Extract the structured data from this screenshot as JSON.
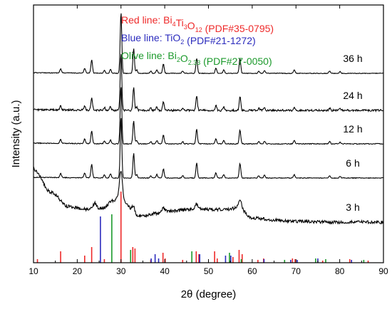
{
  "chart_data": {
    "type": "line",
    "xlabel": "2θ (degree)",
    "ylabel": "Intensity (a.u.)",
    "xlim": [
      10,
      90
    ],
    "x_ticks": [
      "10",
      "20",
      "30",
      "40",
      "50",
      "60",
      "70",
      "80",
      "90"
    ],
    "y_ticks_shown": false,
    "grid": false,
    "legend": {
      "placement": "top-center",
      "entries": [
        {
          "prefix": "Red line: ",
          "formula": [
            [
              "Bi",
              ""
            ],
            [
              "4",
              "sub"
            ],
            [
              "Ti",
              ""
            ],
            [
              "3",
              "sub"
            ],
            [
              "O",
              ""
            ],
            [
              "12",
              "sub"
            ]
          ],
          "ref": " (PDF#35-0795)",
          "color": "#ee2a2a"
        },
        {
          "prefix": "Blue line: ",
          "formula": [
            [
              "TiO",
              ""
            ],
            [
              "2",
              "sub"
            ]
          ],
          "ref": " (PDF#21-1272)",
          "color": "#2b2bbd"
        },
        {
          "prefix": "Olive line: ",
          "formula": [
            [
              "Bi",
              ""
            ],
            [
              "2",
              "sub"
            ],
            [
              "O",
              ""
            ],
            [
              "2.33",
              "sub"
            ]
          ],
          "ref": " (PDF#27-0050)",
          "color": "#1c9a2c"
        }
      ]
    },
    "series": [
      {
        "name": "36 h",
        "color": "#000000"
      },
      {
        "name": "24 h",
        "color": "#000000"
      },
      {
        "name": "12 h",
        "color": "#000000"
      },
      {
        "name": "6 h",
        "color": "#000000"
      },
      {
        "name": "3 h",
        "color": "#000000"
      }
    ],
    "crystalline_peaks": [
      {
        "x": 16.2,
        "h": 0.7
      },
      {
        "x": 21.7,
        "h": 0.8
      },
      {
        "x": 23.3,
        "h": 2.3
      },
      {
        "x": 26.2,
        "h": 0.5
      },
      {
        "x": 27.6,
        "h": 0.7
      },
      {
        "x": 30.0,
        "h": 10.5
      },
      {
        "x": 32.9,
        "h": 4.2
      },
      {
        "x": 33.6,
        "h": 0.6
      },
      {
        "x": 36.8,
        "h": 0.4
      },
      {
        "x": 38.2,
        "h": 0.6
      },
      {
        "x": 39.7,
        "h": 1.6
      },
      {
        "x": 44.1,
        "h": 0.4
      },
      {
        "x": 47.3,
        "h": 2.6
      },
      {
        "x": 51.7,
        "h": 0.9
      },
      {
        "x": 53.5,
        "h": 0.6
      },
      {
        "x": 57.2,
        "h": 2.5
      },
      {
        "x": 61.5,
        "h": 0.4
      },
      {
        "x": 62.8,
        "h": 0.5
      },
      {
        "x": 69.6,
        "h": 0.6
      },
      {
        "x": 77.7,
        "h": 0.4
      },
      {
        "x": 80.1,
        "h": 0.3
      }
    ],
    "amorphous_3h": {
      "x": [
        10,
        14,
        18,
        22,
        26,
        28,
        29.5,
        31,
        33,
        35,
        38,
        42,
        46,
        50,
        54,
        57,
        60,
        65,
        70,
        80,
        90
      ],
      "y": [
        4.0,
        2.4,
        1.4,
        1.2,
        1.3,
        1.8,
        2.0,
        1.7,
        0.8,
        0.7,
        0.9,
        1.1,
        1.2,
        1.2,
        1.2,
        1.3,
        0.6,
        0.45,
        0.35,
        0.3,
        0.3
      ]
    },
    "amorphous_3h_peaks": [
      {
        "x": 24.0,
        "h": 0.4
      },
      {
        "x": 30.0,
        "h": 2.0
      },
      {
        "x": 32.8,
        "h": 0.6
      },
      {
        "x": 39.7,
        "h": 0.3
      },
      {
        "x": 47.3,
        "h": 0.4
      },
      {
        "x": 57.2,
        "h": 0.6
      }
    ],
    "reference_bars": {
      "Bi4Ti3O12": {
        "color": "#ee2a2a",
        "peaks": [
          {
            "x": 10.9,
            "h": 0.05
          },
          {
            "x": 16.2,
            "h": 0.16
          },
          {
            "x": 21.7,
            "h": 0.1
          },
          {
            "x": 23.3,
            "h": 0.22
          },
          {
            "x": 26.2,
            "h": 0.05
          },
          {
            "x": 30.0,
            "h": 1.0
          },
          {
            "x": 32.7,
            "h": 0.22
          },
          {
            "x": 33.2,
            "h": 0.2
          },
          {
            "x": 36.8,
            "h": 0.04
          },
          {
            "x": 39.6,
            "h": 0.14
          },
          {
            "x": 40.1,
            "h": 0.06
          },
          {
            "x": 44.1,
            "h": 0.04
          },
          {
            "x": 47.2,
            "h": 0.16
          },
          {
            "x": 47.8,
            "h": 0.12
          },
          {
            "x": 51.4,
            "h": 0.16
          },
          {
            "x": 52.0,
            "h": 0.06
          },
          {
            "x": 55.6,
            "h": 0.08
          },
          {
            "x": 57.0,
            "h": 0.18
          },
          {
            "x": 57.7,
            "h": 0.12
          },
          {
            "x": 61.3,
            "h": 0.04
          },
          {
            "x": 62.6,
            "h": 0.06
          },
          {
            "x": 69.2,
            "h": 0.06
          },
          {
            "x": 69.8,
            "h": 0.05
          },
          {
            "x": 76.1,
            "h": 0.03
          },
          {
            "x": 82.3,
            "h": 0.05
          },
          {
            "x": 86.5,
            "h": 0.03
          }
        ]
      },
      "TiO2": {
        "color": "#2b2bbd",
        "peaks": [
          {
            "x": 25.3,
            "h": 0.65
          },
          {
            "x": 36.9,
            "h": 0.06
          },
          {
            "x": 37.8,
            "h": 0.12
          },
          {
            "x": 38.6,
            "h": 0.06
          },
          {
            "x": 48.0,
            "h": 0.12
          },
          {
            "x": 53.9,
            "h": 0.1
          },
          {
            "x": 55.1,
            "h": 0.1
          },
          {
            "x": 62.7,
            "h": 0.05
          },
          {
            "x": 68.8,
            "h": 0.04
          },
          {
            "x": 70.3,
            "h": 0.04
          },
          {
            "x": 75.0,
            "h": 0.06
          },
          {
            "x": 82.7,
            "h": 0.04
          }
        ]
      },
      "Bi2O2.33": {
        "color": "#1c9a2c",
        "peaks": [
          {
            "x": 27.9,
            "h": 0.68
          },
          {
            "x": 32.2,
            "h": 0.18
          },
          {
            "x": 46.2,
            "h": 0.16
          },
          {
            "x": 54.8,
            "h": 0.14
          },
          {
            "x": 57.5,
            "h": 0.05
          },
          {
            "x": 67.4,
            "h": 0.04
          },
          {
            "x": 74.5,
            "h": 0.06
          },
          {
            "x": 76.8,
            "h": 0.05
          },
          {
            "x": 85.5,
            "h": 0.04
          }
        ]
      }
    }
  }
}
